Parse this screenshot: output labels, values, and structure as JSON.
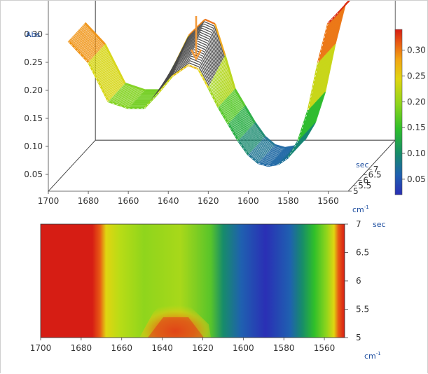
{
  "top_chart": {
    "ylabel": "Abs",
    "y_ticks": [
      "0.05",
      "0.10",
      "0.15",
      "0.20",
      "0.25",
      "0.30"
    ],
    "x_ticks": [
      "1700",
      "1680",
      "1660",
      "1640",
      "1620",
      "1600",
      "1580",
      "1560"
    ],
    "z_ticks": [
      "5",
      "5.5",
      "6",
      "6.5",
      "7"
    ],
    "z_unit": "sec",
    "x_unit": "cm-1",
    "colorbar_ticks": [
      "0.05",
      "0.10",
      "0.15",
      "0.20",
      "0.25",
      "0.30"
    ]
  },
  "bottom_chart": {
    "x_ticks": [
      "1700",
      "1680",
      "1660",
      "1640",
      "1620",
      "1600",
      "1580",
      "1560"
    ],
    "y_ticks": [
      "5",
      "5.5",
      "6",
      "6.5",
      "7"
    ],
    "y_unit": "sec",
    "x_unit": "cm-1"
  },
  "colors": {
    "arrow": "#f39a3c",
    "unit_text": "#1f4fa0",
    "colormap": [
      "#2a2fb5",
      "#1f60b0",
      "#178c6a",
      "#2fbf2a",
      "#8fd51c",
      "#e0d511",
      "#f2a414",
      "#e85a14",
      "#d61d14"
    ]
  },
  "chart_data": [
    {
      "type": "line",
      "title": "",
      "xlabel": "cm-1",
      "ylabel": "Abs",
      "zlabel": "sec",
      "x": [
        1690,
        1680,
        1670,
        1660,
        1652,
        1645,
        1638,
        1630,
        1625,
        1620,
        1615,
        1610,
        1605,
        1600,
        1595,
        1590,
        1585,
        1580,
        1575,
        1570,
        1565,
        1560,
        1555
      ],
      "series": [
        {
          "z": 5.0,
          "values": [
            0.288,
            0.25,
            0.18,
            0.168,
            0.168,
            0.195,
            0.225,
            0.245,
            0.238,
            0.205,
            0.17,
            0.14,
            0.11,
            0.085,
            0.07,
            0.065,
            0.068,
            0.08,
            0.11,
            0.165,
            0.25,
            0.32,
            0.338
          ]
        },
        {
          "z": 5.5,
          "values": [
            0.288,
            0.25,
            0.18,
            0.168,
            0.168,
            0.2,
            0.236,
            0.258,
            0.25,
            0.212,
            0.17,
            0.14,
            0.11,
            0.085,
            0.07,
            0.065,
            0.068,
            0.08,
            0.11,
            0.165,
            0.25,
            0.32,
            0.338
          ]
        },
        {
          "z": 6.0,
          "values": [
            0.288,
            0.25,
            0.18,
            0.168,
            0.168,
            0.205,
            0.246,
            0.27,
            0.262,
            0.218,
            0.17,
            0.14,
            0.11,
            0.085,
            0.07,
            0.065,
            0.068,
            0.08,
            0.11,
            0.165,
            0.25,
            0.32,
            0.338
          ]
        },
        {
          "z": 6.5,
          "values": [
            0.288,
            0.25,
            0.18,
            0.168,
            0.168,
            0.21,
            0.256,
            0.282,
            0.274,
            0.224,
            0.17,
            0.14,
            0.11,
            0.085,
            0.07,
            0.065,
            0.068,
            0.08,
            0.11,
            0.165,
            0.25,
            0.32,
            0.338
          ]
        },
        {
          "z": 7.0,
          "values": [
            0.288,
            0.25,
            0.18,
            0.168,
            0.168,
            0.215,
            0.266,
            0.294,
            0.286,
            0.23,
            0.17,
            0.14,
            0.11,
            0.085,
            0.07,
            0.065,
            0.068,
            0.08,
            0.11,
            0.165,
            0.25,
            0.32,
            0.338
          ]
        }
      ],
      "xlim": [
        1700,
        1550
      ],
      "ylim": [
        0.02,
        0.36
      ],
      "zlim": [
        5,
        7
      ],
      "colorbar_range": [
        0.02,
        0.34
      ],
      "grid": false
    },
    {
      "type": "heatmap",
      "title": "",
      "xlabel": "cm-1",
      "ylabel": "sec",
      "xlim": [
        1700,
        1550
      ],
      "ylim": [
        5,
        7
      ],
      "colorbar_range": [
        0.02,
        0.34
      ]
    }
  ]
}
